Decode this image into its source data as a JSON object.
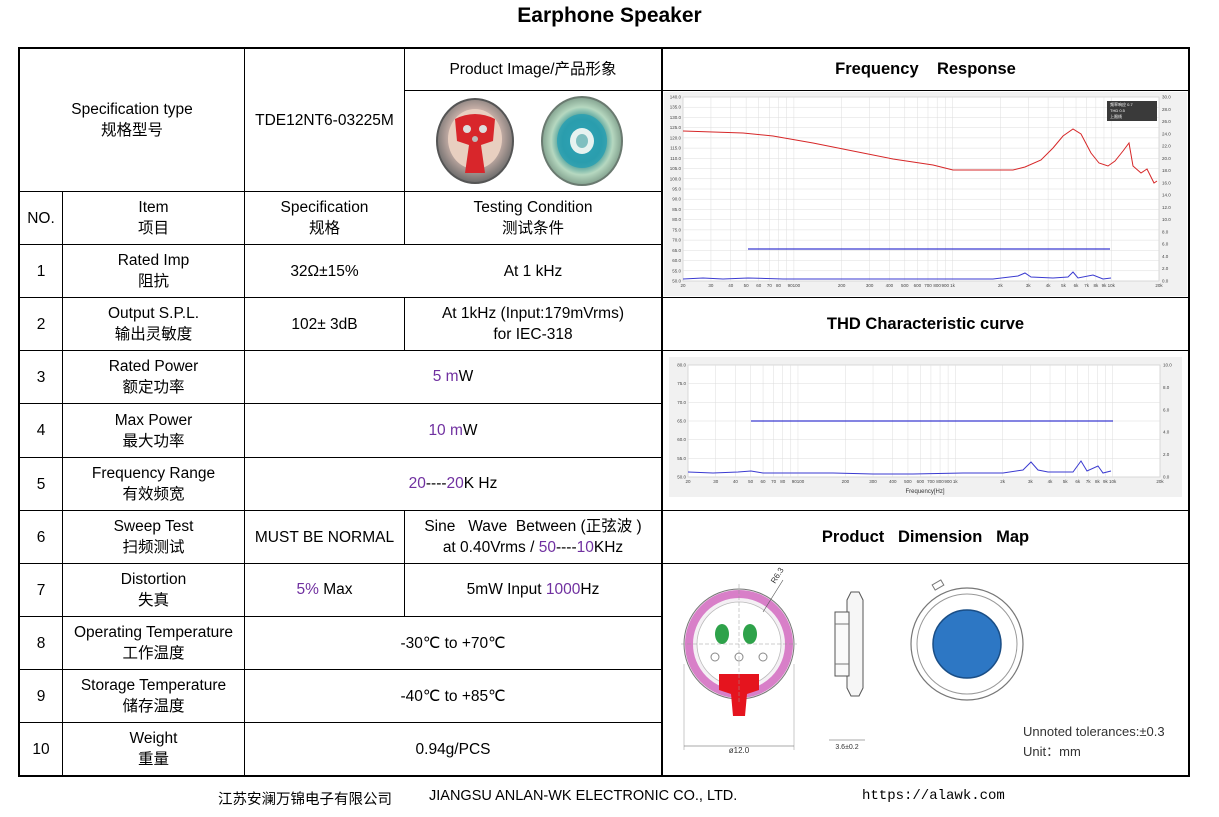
{
  "title": "Earphone Speaker",
  "spec_type": {
    "label_en": "Specification type",
    "label_cn": "规格型号",
    "value": "TDE12NT6-03225M"
  },
  "product_image_label": "Product Image/产品形象",
  "headers": {
    "no": "NO.",
    "item_en": "Item",
    "item_cn": "项目",
    "spec_en": "Specification",
    "spec_cn": "规格",
    "cond_en": "Testing Condition",
    "cond_cn": "测试条件"
  },
  "rows": [
    {
      "no": "1",
      "item_en": "Rated Imp",
      "item_cn": "阻抗",
      "spec": "32Ω±15%",
      "cond": "At 1 kHz"
    },
    {
      "no": "2",
      "item_en": "Output S.P.L.",
      "item_cn": "输出灵敏度",
      "spec": "102± 3dB",
      "cond_1": "At 1kHz (Input:179mVrms)",
      "cond_2": "for IEC-318"
    },
    {
      "no": "3",
      "item_en": "Rated Power",
      "item_cn": "额定功率",
      "val_num": "5 m",
      "val_unit": "W"
    },
    {
      "no": "4",
      "item_en": "Max Power",
      "item_cn": "最大功率",
      "val_num": "10 m",
      "val_unit": "W"
    },
    {
      "no": "5",
      "item_en": "Frequency Range",
      "item_cn": "有效频宽",
      "val_a": "20",
      "val_sep": "----",
      "val_b": "20",
      "val_unit": "K Hz"
    },
    {
      "no": "6",
      "item_en": "Sweep Test",
      "item_cn": "扫频测试",
      "spec": "MUST BE NORMAL",
      "cond_1": "Sine   Wave  Between (正弦波 )",
      "cond_2a": "at 0.40Vrms / ",
      "cond_2b": "50",
      "cond_2c": "----",
      "cond_2d": "10",
      "cond_2e": "KHz"
    },
    {
      "no": "7",
      "item_en": "Distortion",
      "item_cn": "失真",
      "spec_a": "5%",
      "spec_b": " Max",
      "cond_a": "5mW Input ",
      "cond_b": "1000",
      "cond_c": "Hz"
    },
    {
      "no": "8",
      "item_en": "Operating Temperature",
      "item_cn": "工作温度",
      "value": "-30℃ to +70℃"
    },
    {
      "no": "9",
      "item_en": "Storage Temperature",
      "item_cn": "储存温度",
      "value": "-40℃ to +85℃"
    },
    {
      "no": "10",
      "item_en": "Weight",
      "item_cn": "重量",
      "value": "0.94g/PCS"
    }
  ],
  "panels": {
    "freq_title": "Frequency    Response",
    "thd_title": "THD Characteristic curve",
    "dim_title": "Product   Dimension   Map"
  },
  "freq_chart": {
    "left_ticks": [
      "140.0",
      "135.0",
      "130.0",
      "125.0",
      "120.0",
      "115.0",
      "110.0",
      "105.0",
      "100.0",
      "95.0",
      "90.0",
      "85.0",
      "80.0",
      "75.0",
      "70.0",
      "65.0",
      "60.0",
      "55.0",
      "50.0"
    ],
    "right_ticks": [
      "30.0",
      "28.0",
      "26.0",
      "24.0",
      "22.0",
      "20.0",
      "18.0",
      "16.0",
      "14.0",
      "12.0",
      "10.0",
      "8.0",
      "6.0",
      "4.0",
      "2.0",
      "0.0"
    ],
    "x_ticks": [
      "20",
      "30",
      "40",
      "50",
      "60",
      "70",
      "80",
      "90",
      "100",
      "200",
      "300",
      "400",
      "500",
      "600",
      "700",
      "800",
      "900",
      "1k",
      "2k",
      "3k",
      "4k",
      "5k",
      "6k",
      "7k",
      "8k",
      "9k",
      "10k",
      "20k"
    ],
    "x_tick_labels": [
      "20",
      "30",
      "40",
      "50",
      "60",
      "70",
      "80",
      "90100",
      "200",
      "300",
      "400",
      "500",
      "600",
      "700",
      "800",
      "900",
      "1k",
      "2k",
      "3k",
      "4k",
      "5k",
      "6k",
      "7k",
      "8k",
      "9k",
      "10k",
      "20k"
    ],
    "legend": [
      "频率响应 0.7",
      "THD 0.5",
      "上限线"
    ]
  },
  "thd_chart": {
    "left_ticks": [
      "80.0",
      "75.0",
      "70.0",
      "65.0",
      "60.0",
      "55.0",
      "50.0"
    ],
    "right_ticks": [
      "10.0",
      "8.0",
      "6.0",
      "4.0",
      "2.0",
      "0.0"
    ],
    "x_tick_labels": [
      "20",
      "30",
      "40",
      "50",
      "60",
      "70",
      "80",
      "90100",
      "200",
      "300",
      "400",
      "500",
      "600",
      "700",
      "800",
      "900",
      "1k",
      "2k",
      "3k",
      "4k",
      "5k",
      "6k",
      "7k",
      "8k",
      "9k",
      "10k",
      "20k"
    ],
    "xlabel": "Frequency[Hz]"
  },
  "dimension": {
    "dia_label": "ø12.0",
    "thick_label": "3.6±0.2",
    "radius_label": "R6.3",
    "tol_label": "Unnoted tolerances:±0.3",
    "unit_label": "Unit：mm"
  },
  "footer": {
    "company_cn": "江苏安澜万锦电子有限公司",
    "company_en": "JIANGSU ANLAN-WK ELECTRONIC CO., LTD.",
    "url": "https://alawk.com"
  },
  "colors": {
    "purple": "#7030a0",
    "fr_curve": "#d62728",
    "thd_curve": "#3a3ad0"
  }
}
